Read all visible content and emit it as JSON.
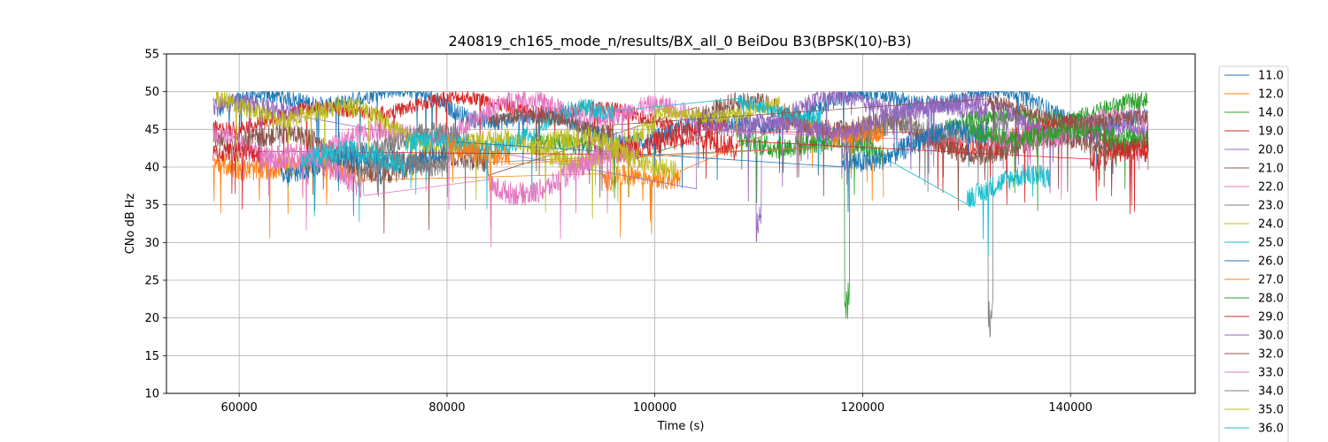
{
  "chart_data": {
    "type": "line",
    "title": "240819_ch165_mode_n/results/BX_all_0 BeiDou B3(BPSK(10)-B3)",
    "xlabel": "Time (s)",
    "ylabel": "CNo dB Hz",
    "xlim": [
      53000,
      152000
    ],
    "ylim": [
      10,
      55
    ],
    "xticks": [
      60000,
      80000,
      100000,
      120000,
      140000
    ],
    "yticks": [
      10,
      15,
      20,
      25,
      30,
      35,
      40,
      45,
      50,
      55
    ],
    "grid": true,
    "legend_position": "right-outside",
    "series": [
      {
        "name": "11.0",
        "color": "#1f77b4",
        "segments": [
          {
            "x0": 57800,
            "x1": 147500,
            "base": 47,
            "noise": 1.2,
            "wave": 2.5
          }
        ]
      },
      {
        "name": "12.0",
        "color": "#ff7f0e",
        "segments": [
          {
            "x0": 57500,
            "x1": 72000,
            "base": 39,
            "noise": 1.5,
            "wave": 2
          },
          {
            "x0": 95000,
            "x1": 102500,
            "base": 38,
            "noise": 1.5,
            "wave": 2
          },
          {
            "x0": 112000,
            "x1": 122000,
            "base": 44,
            "noise": 1.2,
            "wave": 1.5
          }
        ]
      },
      {
        "name": "14.0",
        "color": "#2ca02c",
        "segments": [
          {
            "x0": 88000,
            "x1": 98000,
            "base": 41,
            "noise": 1.3,
            "wave": 2
          },
          {
            "x0": 108000,
            "x1": 122000,
            "base": 44,
            "noise": 1.5,
            "wave": 2.5,
            "dip_at": 118500,
            "dip_to": 19
          },
          {
            "x0": 128000,
            "x1": 147500,
            "base": 47,
            "noise": 1.2,
            "wave": 1.5
          }
        ]
      },
      {
        "name": "19.0",
        "color": "#d62728",
        "segments": [
          {
            "x0": 57500,
            "x1": 107000,
            "base": 47,
            "noise": 1.0,
            "wave": 1.5
          },
          {
            "x0": 125000,
            "x1": 147500,
            "base": 42,
            "noise": 1.5,
            "wave": 2.5
          }
        ]
      },
      {
        "name": "20.0",
        "color": "#9467bd",
        "segments": [
          {
            "x0": 57500,
            "x1": 66000,
            "base": 46,
            "noise": 1.3,
            "wave": 2
          },
          {
            "x0": 104000,
            "x1": 147500,
            "base": 46,
            "noise": 1.2,
            "wave": 2.5,
            "dip_at": 110000,
            "dip_to": 30
          }
        ]
      },
      {
        "name": "21.0",
        "color": "#8c564b",
        "segments": [
          {
            "x0": 57500,
            "x1": 84000,
            "base": 43,
            "noise": 1.5,
            "wave": 3
          },
          {
            "x0": 104000,
            "x1": 147500,
            "base": 45,
            "noise": 1.4,
            "wave": 2.5
          }
        ]
      },
      {
        "name": "22.0",
        "color": "#e377c2",
        "segments": [
          {
            "x0": 57500,
            "x1": 104000,
            "base": 45,
            "noise": 1.4,
            "wave": 3
          },
          {
            "x0": 132000,
            "x1": 147500,
            "base": 44,
            "noise": 1.3,
            "wave": 2
          }
        ]
      },
      {
        "name": "23.0",
        "color": "#7f7f7f",
        "segments": [
          {
            "x0": 70000,
            "x1": 84000,
            "base": 41,
            "noise": 1.5,
            "wave": 2.5
          },
          {
            "x0": 118000,
            "x1": 134000,
            "base": 43,
            "noise": 1.5,
            "wave": 3,
            "dip_at": 132300,
            "dip_to": 17.5
          }
        ]
      },
      {
        "name": "24.0",
        "color": "#bcbd22",
        "segments": [
          {
            "x0": 57800,
            "x1": 100000,
            "base": 45,
            "noise": 1.3,
            "wave": 3
          },
          {
            "x0": 100000,
            "x1": 112000,
            "base": 47,
            "noise": 1.0,
            "wave": 1.5
          }
        ]
      },
      {
        "name": "25.0",
        "color": "#17becf",
        "segments": [
          {
            "x0": 76000,
            "x1": 96000,
            "base": 45,
            "noise": 1.3,
            "wave": 3
          },
          {
            "x0": 108000,
            "x1": 116000,
            "base": 47,
            "noise": 1.0,
            "wave": 1.5
          },
          {
            "x0": 130000,
            "x1": 138000,
            "base": 40,
            "noise": 1.5,
            "wave": 3
          }
        ]
      },
      {
        "name": "26.0",
        "color": "#1f77b4",
        "segments": [
          {
            "x0": 64000,
            "x1": 80000,
            "base": 41,
            "noise": 1.5,
            "wave": 2
          },
          {
            "x0": 118000,
            "x1": 132000,
            "base": 44,
            "noise": 1.5,
            "wave": 2.5
          }
        ]
      },
      {
        "name": "27.0",
        "color": "#ff7f0e",
        "segments": [
          {
            "x0": 80000,
            "x1": 86000,
            "base": 42,
            "noise": 1.5,
            "wave": 2
          },
          {
            "x0": 117000,
            "x1": 122000,
            "base": 43,
            "noise": 1.3,
            "wave": 1.5
          }
        ]
      },
      {
        "name": "28.0",
        "color": "#2ca02c",
        "segments": [
          {
            "x0": 130000,
            "x1": 147500,
            "base": 46,
            "noise": 1.3,
            "wave": 2
          }
        ]
      },
      {
        "name": "29.0",
        "color": "#d62728",
        "segments": [
          {
            "x0": 57500,
            "x1": 62000,
            "base": 42,
            "noise": 1.3,
            "wave": 1.5
          },
          {
            "x0": 96000,
            "x1": 108000,
            "base": 41,
            "noise": 1.6,
            "wave": 2.5
          },
          {
            "x0": 142000,
            "x1": 147500,
            "base": 41,
            "noise": 1.3,
            "wave": 1.5
          }
        ]
      },
      {
        "name": "30.0",
        "color": "#9467bd",
        "segments": [
          {
            "x0": 108000,
            "x1": 132000,
            "base": 47,
            "noise": 1.2,
            "wave": 2
          }
        ]
      },
      {
        "name": "32.0",
        "color": "#8c564b",
        "segments": [
          {
            "x0": 84000,
            "x1": 96000,
            "base": 47,
            "noise": 1.0,
            "wave": 1.5
          },
          {
            "x0": 132000,
            "x1": 147500,
            "base": 47,
            "noise": 1.0,
            "wave": 1.5
          }
        ]
      },
      {
        "name": "33.0",
        "color": "#e377c2",
        "segments": [
          {
            "x0": 62000,
            "x1": 72000,
            "base": 40,
            "noise": 1.6,
            "wave": 3
          },
          {
            "x0": 84000,
            "x1": 98000,
            "base": 40,
            "noise": 1.6,
            "wave": 3
          }
        ]
      },
      {
        "name": "34.0",
        "color": "#7f7f7f",
        "segments": [
          {
            "x0": 72000,
            "x1": 80000,
            "base": 41,
            "noise": 1.5,
            "wave": 2
          }
        ]
      },
      {
        "name": "35.0",
        "color": "#bcbd22",
        "segments": [
          {
            "x0": 88000,
            "x1": 102000,
            "base": 43,
            "noise": 1.5,
            "wave": 2.5
          }
        ]
      },
      {
        "name": "36.0",
        "color": "#17becf",
        "segments": [
          {
            "x0": 66000,
            "x1": 76000,
            "base": 40,
            "noise": 1.5,
            "wave": 2
          }
        ]
      }
    ]
  }
}
